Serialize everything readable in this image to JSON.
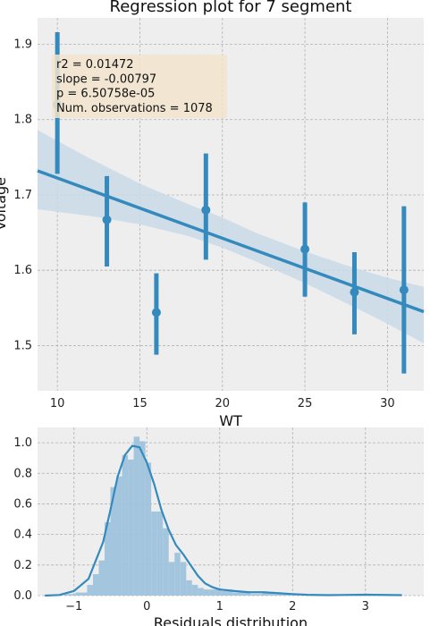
{
  "chart_data": [
    {
      "type": "scatter",
      "title": "Regression plot for 7 segment",
      "xlabel": "WT",
      "ylabel": "Voltage",
      "xlim": [
        8.8,
        32.2
      ],
      "ylim": [
        1.44,
        1.935
      ],
      "xticks": [
        10,
        15,
        20,
        25,
        30
      ],
      "xtick_labels": [
        "10",
        "15",
        "20",
        "25",
        "30"
      ],
      "yticks": [
        1.5,
        1.6,
        1.7,
        1.8,
        1.9
      ],
      "ytick_labels": [
        "1.5",
        "1.6",
        "1.7",
        "1.8",
        "1.9"
      ],
      "grid": true,
      "annotation": {
        "lines": [
          "r2 = 0.01472",
          "slope = -0.00797",
          "p = 6.50758e-05",
          "Num. observations = 1078"
        ],
        "placement": "top-left"
      },
      "points": [
        {
          "x": 10,
          "y": 1.82,
          "low": 1.728,
          "high": 1.916
        },
        {
          "x": 13,
          "y": 1.667,
          "low": 1.605,
          "high": 1.725
        },
        {
          "x": 16,
          "y": 1.544,
          "low": 1.488,
          "high": 1.596
        },
        {
          "x": 19,
          "y": 1.68,
          "low": 1.614,
          "high": 1.755
        },
        {
          "x": 25,
          "y": 1.628,
          "low": 1.565,
          "high": 1.69
        },
        {
          "x": 28,
          "y": 1.571,
          "low": 1.515,
          "high": 1.624
        },
        {
          "x": 31,
          "y": 1.574,
          "low": 1.463,
          "high": 1.685
        }
      ],
      "regression": {
        "x": [
          8.8,
          32.2
        ],
        "y": [
          1.732,
          1.545
        ]
      },
      "confidence_band": {
        "x": [
          8.8,
          12,
          15,
          18,
          20,
          22,
          25,
          28,
          30,
          32.2
        ],
        "upper": [
          1.786,
          1.748,
          1.715,
          1.687,
          1.67,
          1.65,
          1.625,
          1.603,
          1.59,
          1.578
        ],
        "lower": [
          1.681,
          1.672,
          1.661,
          1.645,
          1.63,
          1.612,
          1.583,
          1.551,
          1.529,
          1.503
        ]
      },
      "colors": {
        "line": "#348abd",
        "band": "#c9d9e6",
        "annotation_box": "#f2e4cc",
        "background": "#eeeeee",
        "grid": "#b2b2b2"
      }
    },
    {
      "type": "histogram",
      "title": "",
      "xlabel": "Residuals distribution",
      "ylabel": "",
      "xlim": [
        -1.5,
        3.8
      ],
      "ylim": [
        0,
        1.1
      ],
      "xticks": [
        -1,
        0,
        1,
        2,
        3
      ],
      "xtick_labels": [
        "−1",
        "0",
        "1",
        "2",
        "3"
      ],
      "yticks": [
        0,
        0.2,
        0.4,
        0.6,
        0.8,
        1.0
      ],
      "ytick_labels": [
        "0.0",
        "0.2",
        "0.4",
        "0.6",
        "0.8",
        "1.0"
      ],
      "grid": true,
      "bins": [
        {
          "x0": -1.38,
          "x1": -1.3,
          "h": 0.0
        },
        {
          "x0": -1.3,
          "x1": -1.22,
          "h": 0.0
        },
        {
          "x0": -1.22,
          "x1": -1.14,
          "h": 0.0
        },
        {
          "x0": -1.14,
          "x1": -1.06,
          "h": 0.01
        },
        {
          "x0": -1.06,
          "x1": -0.98,
          "h": 0.01
        },
        {
          "x0": -0.98,
          "x1": -0.9,
          "h": 0.02
        },
        {
          "x0": -0.9,
          "x1": -0.82,
          "h": 0.02
        },
        {
          "x0": -0.82,
          "x1": -0.74,
          "h": 0.07
        },
        {
          "x0": -0.74,
          "x1": -0.66,
          "h": 0.14
        },
        {
          "x0": -0.66,
          "x1": -0.58,
          "h": 0.23
        },
        {
          "x0": -0.58,
          "x1": -0.5,
          "h": 0.48
        },
        {
          "x0": -0.5,
          "x1": -0.42,
          "h": 0.71
        },
        {
          "x0": -0.42,
          "x1": -0.34,
          "h": 0.78
        },
        {
          "x0": -0.34,
          "x1": -0.26,
          "h": 0.92
        },
        {
          "x0": -0.26,
          "x1": -0.18,
          "h": 0.89
        },
        {
          "x0": -0.18,
          "x1": -0.1,
          "h": 1.04
        },
        {
          "x0": -0.1,
          "x1": -0.02,
          "h": 1.01
        },
        {
          "x0": -0.02,
          "x1": 0.06,
          "h": 0.87
        },
        {
          "x0": 0.06,
          "x1": 0.14,
          "h": 0.55
        },
        {
          "x0": 0.14,
          "x1": 0.22,
          "h": 0.55
        },
        {
          "x0": 0.22,
          "x1": 0.3,
          "h": 0.44
        },
        {
          "x0": 0.3,
          "x1": 0.38,
          "h": 0.22
        },
        {
          "x0": 0.38,
          "x1": 0.46,
          "h": 0.28
        },
        {
          "x0": 0.46,
          "x1": 0.54,
          "h": 0.22
        },
        {
          "x0": 0.54,
          "x1": 0.62,
          "h": 0.1
        },
        {
          "x0": 0.62,
          "x1": 0.7,
          "h": 0.07
        },
        {
          "x0": 0.7,
          "x1": 0.78,
          "h": 0.05
        },
        {
          "x0": 0.78,
          "x1": 0.86,
          "h": 0.04
        },
        {
          "x0": 0.86,
          "x1": 0.94,
          "h": 0.04
        },
        {
          "x0": 0.94,
          "x1": 1.02,
          "h": 0.05
        },
        {
          "x0": 1.02,
          "x1": 1.1,
          "h": 0.03
        },
        {
          "x0": 1.1,
          "x1": 1.18,
          "h": 0.04
        },
        {
          "x0": 1.18,
          "x1": 1.26,
          "h": 0.02
        },
        {
          "x0": 1.26,
          "x1": 1.34,
          "h": 0.03
        },
        {
          "x0": 1.34,
          "x1": 1.42,
          "h": 0.02
        },
        {
          "x0": 1.42,
          "x1": 1.5,
          "h": 0.01
        },
        {
          "x0": 1.5,
          "x1": 1.58,
          "h": 0.01
        },
        {
          "x0": 1.58,
          "x1": 1.66,
          "h": 0.02
        },
        {
          "x0": 1.66,
          "x1": 1.74,
          "h": 0.02
        },
        {
          "x0": 1.74,
          "x1": 1.82,
          "h": 0.01
        },
        {
          "x0": 1.82,
          "x1": 1.9,
          "h": 0.01
        },
        {
          "x0": 1.9,
          "x1": 1.98,
          "h": 0.01
        },
        {
          "x0": 1.98,
          "x1": 2.06,
          "h": 0.01
        },
        {
          "x0": 2.06,
          "x1": 2.14,
          "h": 0.0
        },
        {
          "x0": 2.14,
          "x1": 2.22,
          "h": 0.0
        },
        {
          "x0": 2.9,
          "x1": 2.98,
          "h": 0.01
        }
      ],
      "kde": {
        "x": [
          -1.4,
          -1.2,
          -1.0,
          -0.8,
          -0.6,
          -0.5,
          -0.4,
          -0.3,
          -0.2,
          -0.1,
          0.0,
          0.1,
          0.2,
          0.3,
          0.4,
          0.5,
          0.6,
          0.7,
          0.8,
          0.9,
          1.0,
          1.2,
          1.4,
          1.6,
          1.8,
          2.0,
          2.2,
          2.5,
          3.0,
          3.5
        ],
        "y": [
          0.0,
          0.004,
          0.03,
          0.11,
          0.35,
          0.56,
          0.78,
          0.92,
          0.98,
          0.97,
          0.87,
          0.73,
          0.56,
          0.43,
          0.33,
          0.27,
          0.2,
          0.13,
          0.08,
          0.055,
          0.04,
          0.03,
          0.022,
          0.022,
          0.016,
          0.01,
          0.005,
          0.003,
          0.006,
          0.003
        ]
      },
      "colors": {
        "bars": "#9ec3dc",
        "kde": "#348abd",
        "background": "#eeeeee",
        "grid": "#b2b2b2"
      }
    }
  ]
}
